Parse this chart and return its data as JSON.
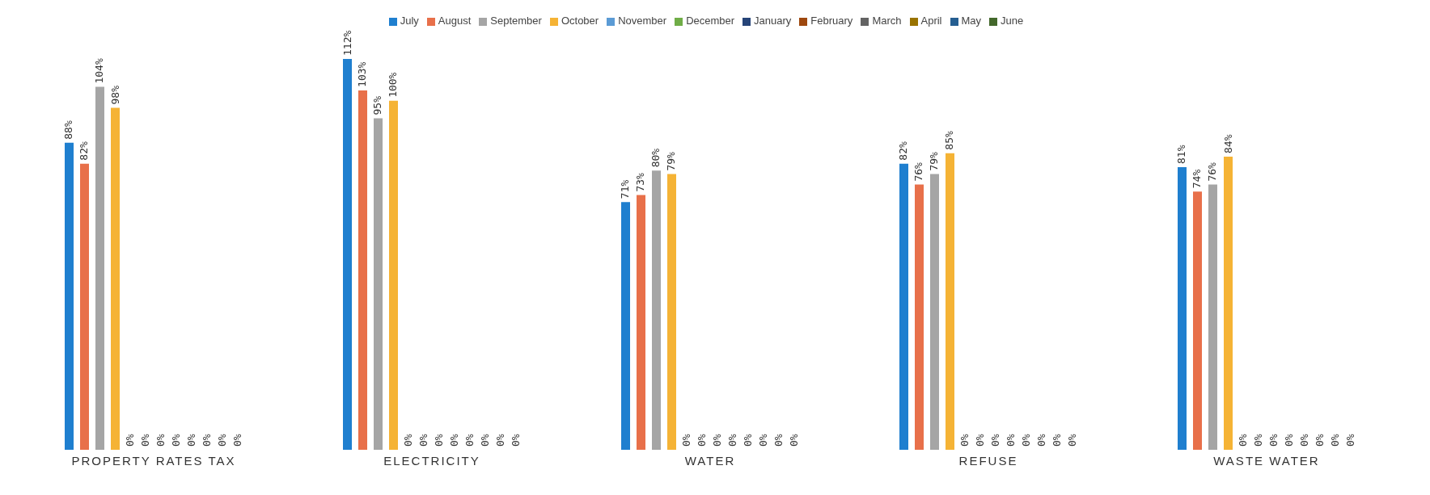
{
  "chart_data": {
    "type": "bar",
    "categories": [
      "PROPERTY RATES TAX",
      "ELECTRICITY",
      "WATER",
      "REFUSE",
      "WASTE WATER"
    ],
    "series": [
      {
        "name": "July",
        "color": "#1f7fcf",
        "values": [
          88,
          112,
          71,
          82,
          81
        ],
        "value_labels": [
          "88%",
          "112%",
          "71%",
          "82%",
          "81%"
        ]
      },
      {
        "name": "August",
        "color": "#e8704a",
        "values": [
          82,
          103,
          73,
          76,
          74
        ],
        "value_labels": [
          "82%",
          "103%",
          "73%",
          "76%",
          "74%"
        ]
      },
      {
        "name": "September",
        "color": "#a5a5a5",
        "values": [
          104,
          95,
          80,
          79,
          76
        ],
        "value_labels": [
          "104%",
          "95%",
          "80%",
          "79%",
          "76%"
        ]
      },
      {
        "name": "October",
        "color": "#f5b335",
        "values": [
          98,
          100,
          79,
          85,
          84
        ],
        "value_labels": [
          "98%",
          "100%",
          "79%",
          "85%",
          "84%"
        ]
      },
      {
        "name": "November",
        "color": "#5b9bd5",
        "values": [
          0,
          0,
          0,
          0,
          0
        ],
        "value_labels": [
          "0%",
          "0%",
          "0%",
          "0%",
          "0%"
        ]
      },
      {
        "name": "December",
        "color": "#70ad47",
        "values": [
          0,
          0,
          0,
          0,
          0
        ],
        "value_labels": [
          "0%",
          "0%",
          "0%",
          "0%",
          "0%"
        ]
      },
      {
        "name": "January",
        "color": "#264478",
        "values": [
          0,
          0,
          0,
          0,
          0
        ],
        "value_labels": [
          "0%",
          "0%",
          "0%",
          "0%",
          "0%"
        ]
      },
      {
        "name": "February",
        "color": "#9e480e",
        "values": [
          0,
          0,
          0,
          0,
          0
        ],
        "value_labels": [
          "0%",
          "0%",
          "0%",
          "0%",
          "0%"
        ]
      },
      {
        "name": "March",
        "color": "#636363",
        "values": [
          0,
          0,
          0,
          0,
          0
        ],
        "value_labels": [
          "0%",
          "0%",
          "0%",
          "0%",
          "0%"
        ]
      },
      {
        "name": "April",
        "color": "#997300",
        "values": [
          0,
          0,
          0,
          0,
          0
        ],
        "value_labels": [
          "0%",
          "0%",
          "0%",
          "0%",
          "0%"
        ]
      },
      {
        "name": "May",
        "color": "#255e91",
        "values": [
          0,
          0,
          0,
          0,
          0
        ],
        "value_labels": [
          "0%",
          "0%",
          "0%",
          "0%",
          "0%"
        ]
      },
      {
        "name": "June",
        "color": "#43682b",
        "values": [
          0,
          0,
          0,
          0,
          0
        ],
        "value_labels": [
          "0%",
          "0%",
          "0%",
          "0%",
          "0%"
        ]
      }
    ],
    "grid": false,
    "legend": "top"
  }
}
